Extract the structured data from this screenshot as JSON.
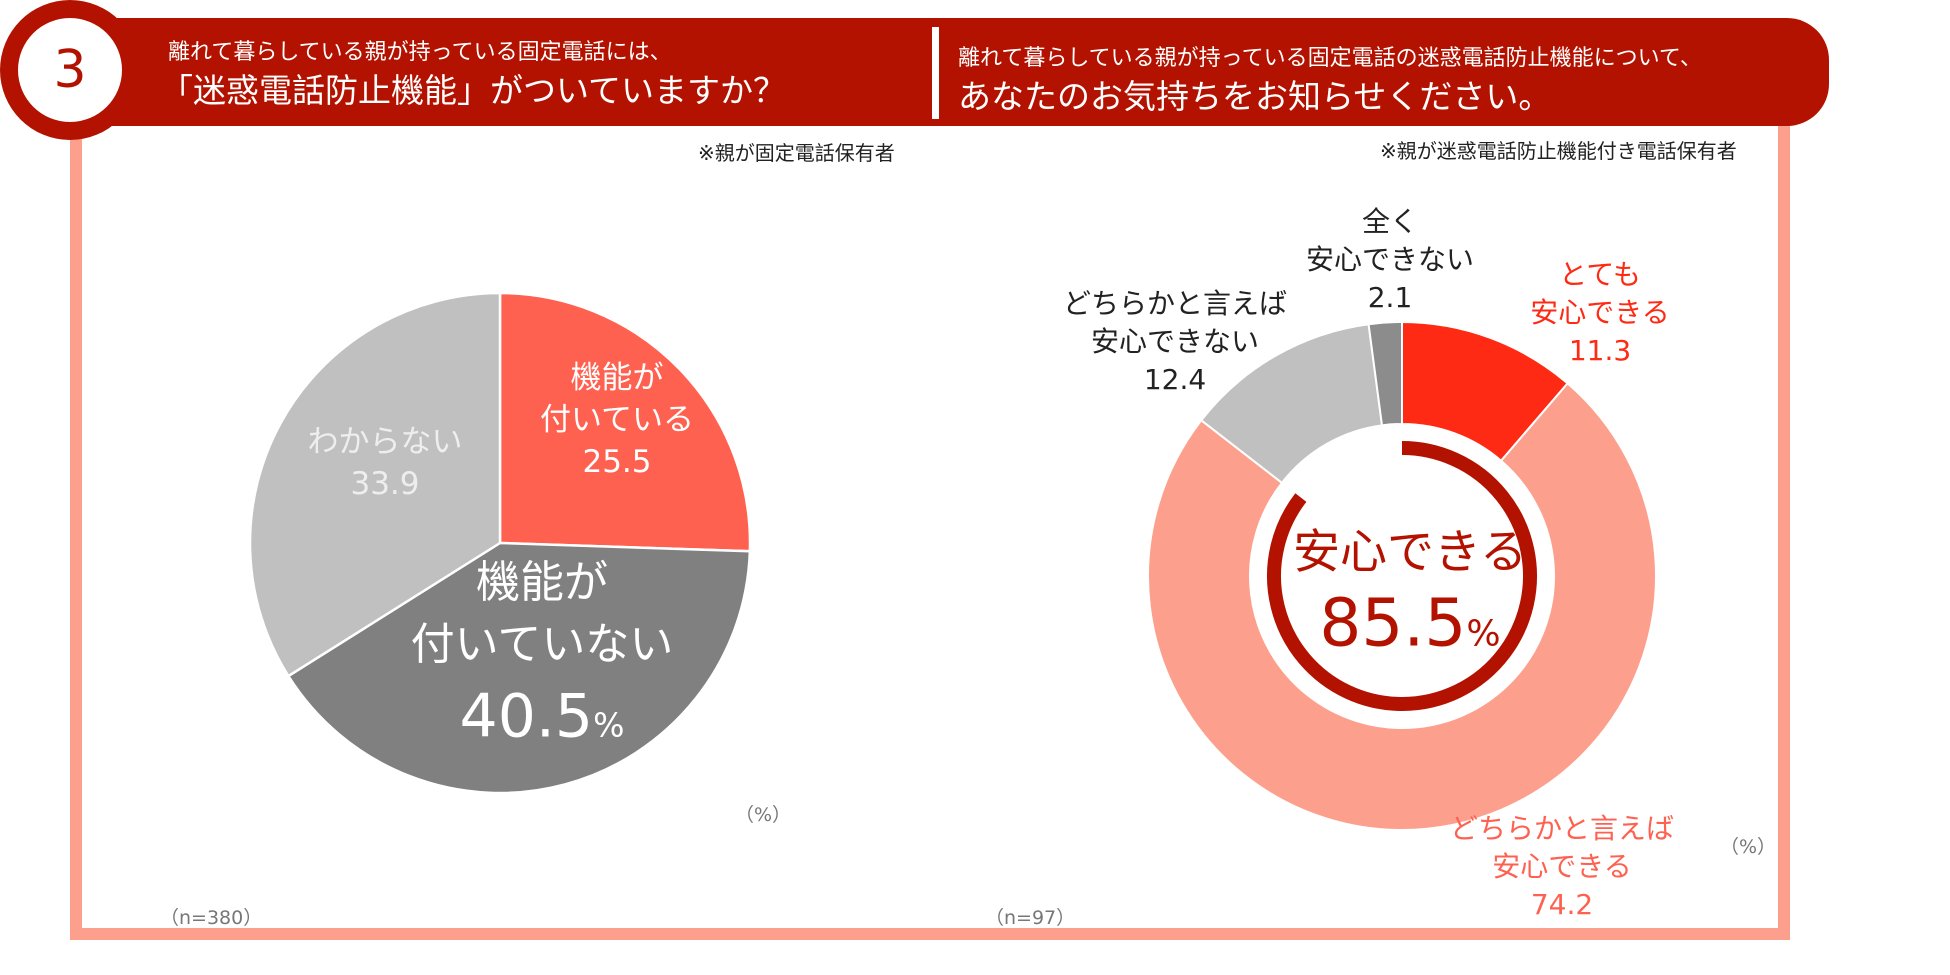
{
  "header": {
    "number": "3",
    "left_line1": "離れて暮らしている親が持っている固定電話には、",
    "left_line2": "「迷惑電話防止機能」がついていますか？",
    "right_line1": "離れて暮らしている親が持っている固定電話の迷惑電話防止機能について、",
    "right_line2": "あなたのお気持ちをお知らせください。"
  },
  "left_note": "※親が固定電話保有者",
  "right_note": "※親が迷惑電話防止機能付き電話保有者",
  "left_n": "（n=380）",
  "right_n": "（n=97）",
  "left_pct_unit": "（%）",
  "right_pct_unit": "（%）",
  "colors": {
    "dark_red": "#b31200",
    "salmon": "#fca08d",
    "coral": "#ff6150",
    "bright_red": "#ff2a14",
    "light_gray": "#c0c0c0",
    "mid_gray": "#808080",
    "dark_gray": "#8c8c8c"
  },
  "chart_data": [
    {
      "type": "pie",
      "title": "離れて暮らしている親が持っている固定電話には、「迷惑電話防止機能」がついていますか？",
      "unit": "%",
      "slices": [
        {
          "label": "機能が付いている",
          "value": 25.5,
          "label_lines": [
            "機能が",
            "付いている"
          ],
          "value_text": "25.5"
        },
        {
          "label": "機能が付いていない",
          "value": 40.5,
          "label_lines": [
            "機能が",
            "付いていない"
          ],
          "value_text": "40.5",
          "suffix": "%"
        },
        {
          "label": "わからない",
          "value": 33.9,
          "label_lines": [
            "わからない"
          ],
          "value_text": "33.9"
        }
      ]
    },
    {
      "type": "pie",
      "subtype": "donut",
      "title": "離れて暮らしている親が持っている固定電話の迷惑電話防止機能について、あなたのお気持ちをお知らせください。",
      "unit": "%",
      "slices": [
        {
          "label": "とても安心できる",
          "value": 11.3,
          "label_lines": [
            "とても",
            "安心できる"
          ],
          "value_text": "11.3"
        },
        {
          "label": "どちらかと言えば安心できる",
          "value": 74.2,
          "label_lines": [
            "どちらかと言えば",
            "安心できる"
          ],
          "value_text": "74.2"
        },
        {
          "label": "どちらかと言えば安心できない",
          "value": 12.4,
          "label_lines": [
            "どちらかと言えば",
            "安心できない"
          ],
          "value_text": "12.4"
        },
        {
          "label": "全く安心できない",
          "value": 2.1,
          "label_lines": [
            "全く",
            "安心できない"
          ],
          "value_text": "2.1"
        }
      ],
      "center": {
        "label": "安心できる",
        "value": 85.5,
        "value_text": "85.5",
        "suffix": "%"
      }
    }
  ]
}
